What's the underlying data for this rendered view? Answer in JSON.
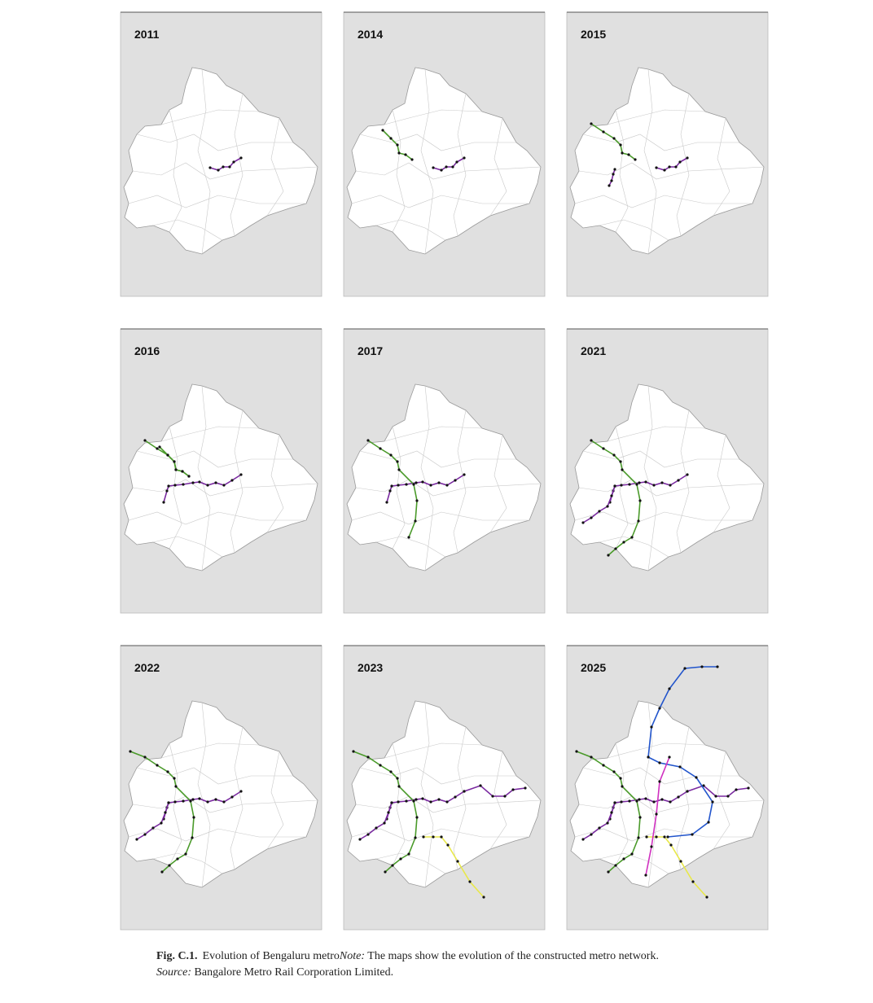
{
  "panels": [
    {
      "year": "2011"
    },
    {
      "year": "2014"
    },
    {
      "year": "2015"
    },
    {
      "year": "2016"
    },
    {
      "year": "2017"
    },
    {
      "year": "2021"
    },
    {
      "year": "2022"
    },
    {
      "year": "2023"
    },
    {
      "year": "2025"
    }
  ],
  "caption": {
    "label": "Fig. C.1.",
    "title": "Evolution of Bengaluru metro",
    "note_label": "Note:",
    "note": "The maps show the evolution of the constructed metro network.",
    "source_label": "Source:",
    "source": "Bangalore Metro Rail Corporation Limited."
  }
}
